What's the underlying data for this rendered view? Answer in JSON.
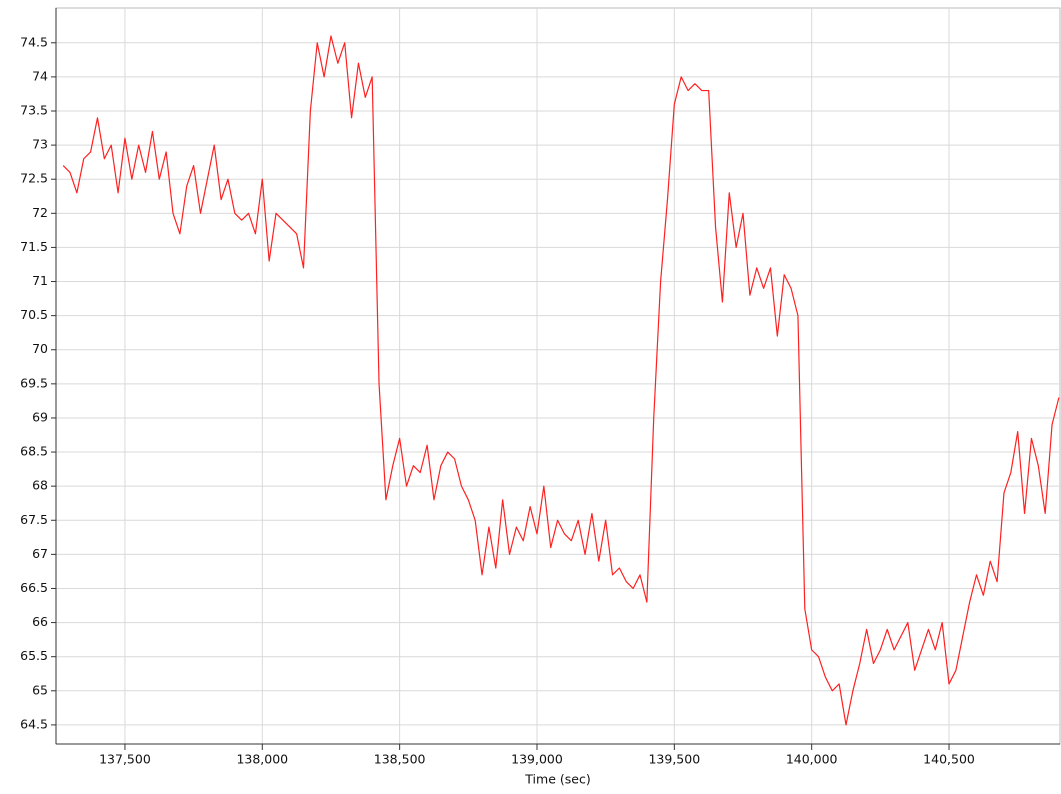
{
  "chart_data": {
    "type": "line",
    "x_label": "Time (sec)",
    "xlim": [
      137249,
      140904
    ],
    "ylim": [
      64.22,
      75.01
    ],
    "xticks": [
      {
        "value": 137500,
        "label": "137,500"
      },
      {
        "value": 138000,
        "label": "138,000"
      },
      {
        "value": 138500,
        "label": "138,500"
      },
      {
        "value": 139000,
        "label": "139,000"
      },
      {
        "value": 139500,
        "label": "139,500"
      },
      {
        "value": 140000,
        "label": "140,000"
      },
      {
        "value": 140500,
        "label": "140,500"
      }
    ],
    "yticks": [
      64.5,
      65,
      65.5,
      66,
      66.5,
      67,
      67.5,
      68,
      68.5,
      69,
      69.5,
      70,
      70.5,
      71,
      71.5,
      72,
      72.5,
      73,
      73.5,
      74,
      74.5
    ],
    "grid": true,
    "x": [
      137275,
      137300,
      137325,
      137350,
      137375,
      137400,
      137425,
      137450,
      137475,
      137500,
      137525,
      137550,
      137575,
      137600,
      137625,
      137650,
      137675,
      137700,
      137725,
      137750,
      137775,
      137800,
      137825,
      137850,
      137875,
      137900,
      137925,
      137950,
      137975,
      138000,
      138025,
      138050,
      138075,
      138100,
      138125,
      138150,
      138175,
      138200,
      138225,
      138250,
      138275,
      138300,
      138325,
      138350,
      138375,
      138400,
      138425,
      138450,
      138475,
      138500,
      138525,
      138550,
      138575,
      138600,
      138625,
      138650,
      138675,
      138700,
      138725,
      138750,
      138775,
      138800,
      138825,
      138850,
      138875,
      138900,
      138925,
      138950,
      138975,
      139000,
      139025,
      139050,
      139075,
      139100,
      139125,
      139150,
      139175,
      139200,
      139225,
      139250,
      139275,
      139300,
      139325,
      139350,
      139375,
      139400,
      139425,
      139450,
      139475,
      139500,
      139525,
      139550,
      139575,
      139600,
      139625,
      139650,
      139675,
      139700,
      139725,
      139750,
      139775,
      139800,
      139825,
      139850,
      139875,
      139900,
      139925,
      139950,
      139975,
      140000,
      140025,
      140050,
      140075,
      140100,
      140125,
      140150,
      140175,
      140200,
      140225,
      140250,
      140275,
      140300,
      140325,
      140350,
      140375,
      140400,
      140425,
      140450,
      140475,
      140500,
      140525,
      140550,
      140575,
      140600,
      140625,
      140650,
      140675,
      140700,
      140725,
      140750,
      140775,
      140800,
      140825,
      140850,
      140875,
      140900
    ],
    "series": [
      {
        "color": "#ff2020",
        "values": [
          72.7,
          72.6,
          72.3,
          72.8,
          72.9,
          73.4,
          72.8,
          73.0,
          72.3,
          73.1,
          72.5,
          73.0,
          72.6,
          73.2,
          72.5,
          72.9,
          72.0,
          71.7,
          72.4,
          72.7,
          72.0,
          72.5,
          73.0,
          72.2,
          72.5,
          72.0,
          71.9,
          72.0,
          71.7,
          72.5,
          71.3,
          72.0,
          71.9,
          71.8,
          71.7,
          71.2,
          73.5,
          74.5,
          74.0,
          74.6,
          74.2,
          74.5,
          73.4,
          74.2,
          73.7,
          74.0,
          69.5,
          67.8,
          68.3,
          68.7,
          68.0,
          68.3,
          68.2,
          68.6,
          67.8,
          68.3,
          68.5,
          68.4,
          68.0,
          67.8,
          67.5,
          66.7,
          67.4,
          66.8,
          67.8,
          67.0,
          67.4,
          67.2,
          67.7,
          67.3,
          68.0,
          67.1,
          67.5,
          67.3,
          67.2,
          67.5,
          67.0,
          67.6,
          66.9,
          67.5,
          66.7,
          66.8,
          66.6,
          66.5,
          66.7,
          66.3,
          69.0,
          71.0,
          72.2,
          73.6,
          74.0,
          73.8,
          73.9,
          73.8,
          73.8,
          71.8,
          70.7,
          72.3,
          71.5,
          72.0,
          70.8,
          71.2,
          70.9,
          71.2,
          70.2,
          71.1,
          70.9,
          70.5,
          66.2,
          65.6,
          65.5,
          65.2,
          65.0,
          65.1,
          64.5,
          65.0,
          65.4,
          65.9,
          65.4,
          65.6,
          65.9,
          65.6,
          65.8,
          66.0,
          65.3,
          65.6,
          65.9,
          65.6,
          66.0,
          65.1,
          65.3,
          65.8,
          66.3,
          66.7,
          66.4,
          66.9,
          66.6,
          67.9,
          68.2,
          68.8,
          67.6,
          68.7,
          68.3,
          67.6,
          68.9,
          69.3
        ]
      }
    ]
  }
}
